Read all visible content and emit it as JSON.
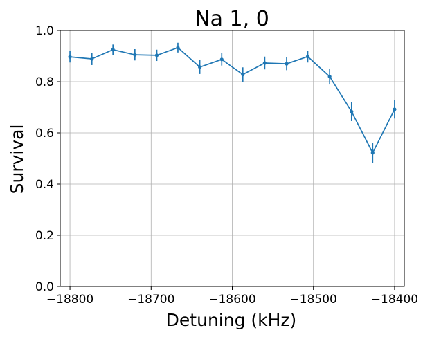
{
  "chart_data": {
    "type": "line",
    "title": "Na 1, 0",
    "xlabel": "Detuning (kHz)",
    "ylabel": "Survival",
    "xlim": [
      -18812,
      -18388
    ],
    "ylim": [
      0.0,
      1.0
    ],
    "xticks": [
      -18800,
      -18700,
      -18600,
      -18500,
      -18400
    ],
    "xtick_labels": [
      "−18800",
      "−18700",
      "−18600",
      "−18500",
      "−18400"
    ],
    "yticks": [
      0.0,
      0.2,
      0.4,
      0.6,
      0.8,
      1.0
    ],
    "ytick_labels": [
      "0.0",
      "0.2",
      "0.4",
      "0.6",
      "0.8",
      "1.0"
    ],
    "grid": true,
    "series": [
      {
        "color": "#1f77b4",
        "marker": "point",
        "error_bars": true,
        "x": [
          -18800,
          -18773,
          -18747,
          -18720,
          -18693,
          -18667,
          -18640,
          -18613,
          -18587,
          -18560,
          -18533,
          -18507,
          -18480,
          -18453,
          -18427,
          -18400
        ],
        "y": [
          0.897,
          0.889,
          0.925,
          0.905,
          0.903,
          0.933,
          0.857,
          0.887,
          0.828,
          0.873,
          0.87,
          0.898,
          0.82,
          0.683,
          0.522,
          0.692
        ],
        "yerr": [
          0.022,
          0.024,
          0.02,
          0.022,
          0.022,
          0.019,
          0.027,
          0.024,
          0.028,
          0.025,
          0.025,
          0.023,
          0.031,
          0.037,
          0.04,
          0.036
        ]
      }
    ]
  }
}
